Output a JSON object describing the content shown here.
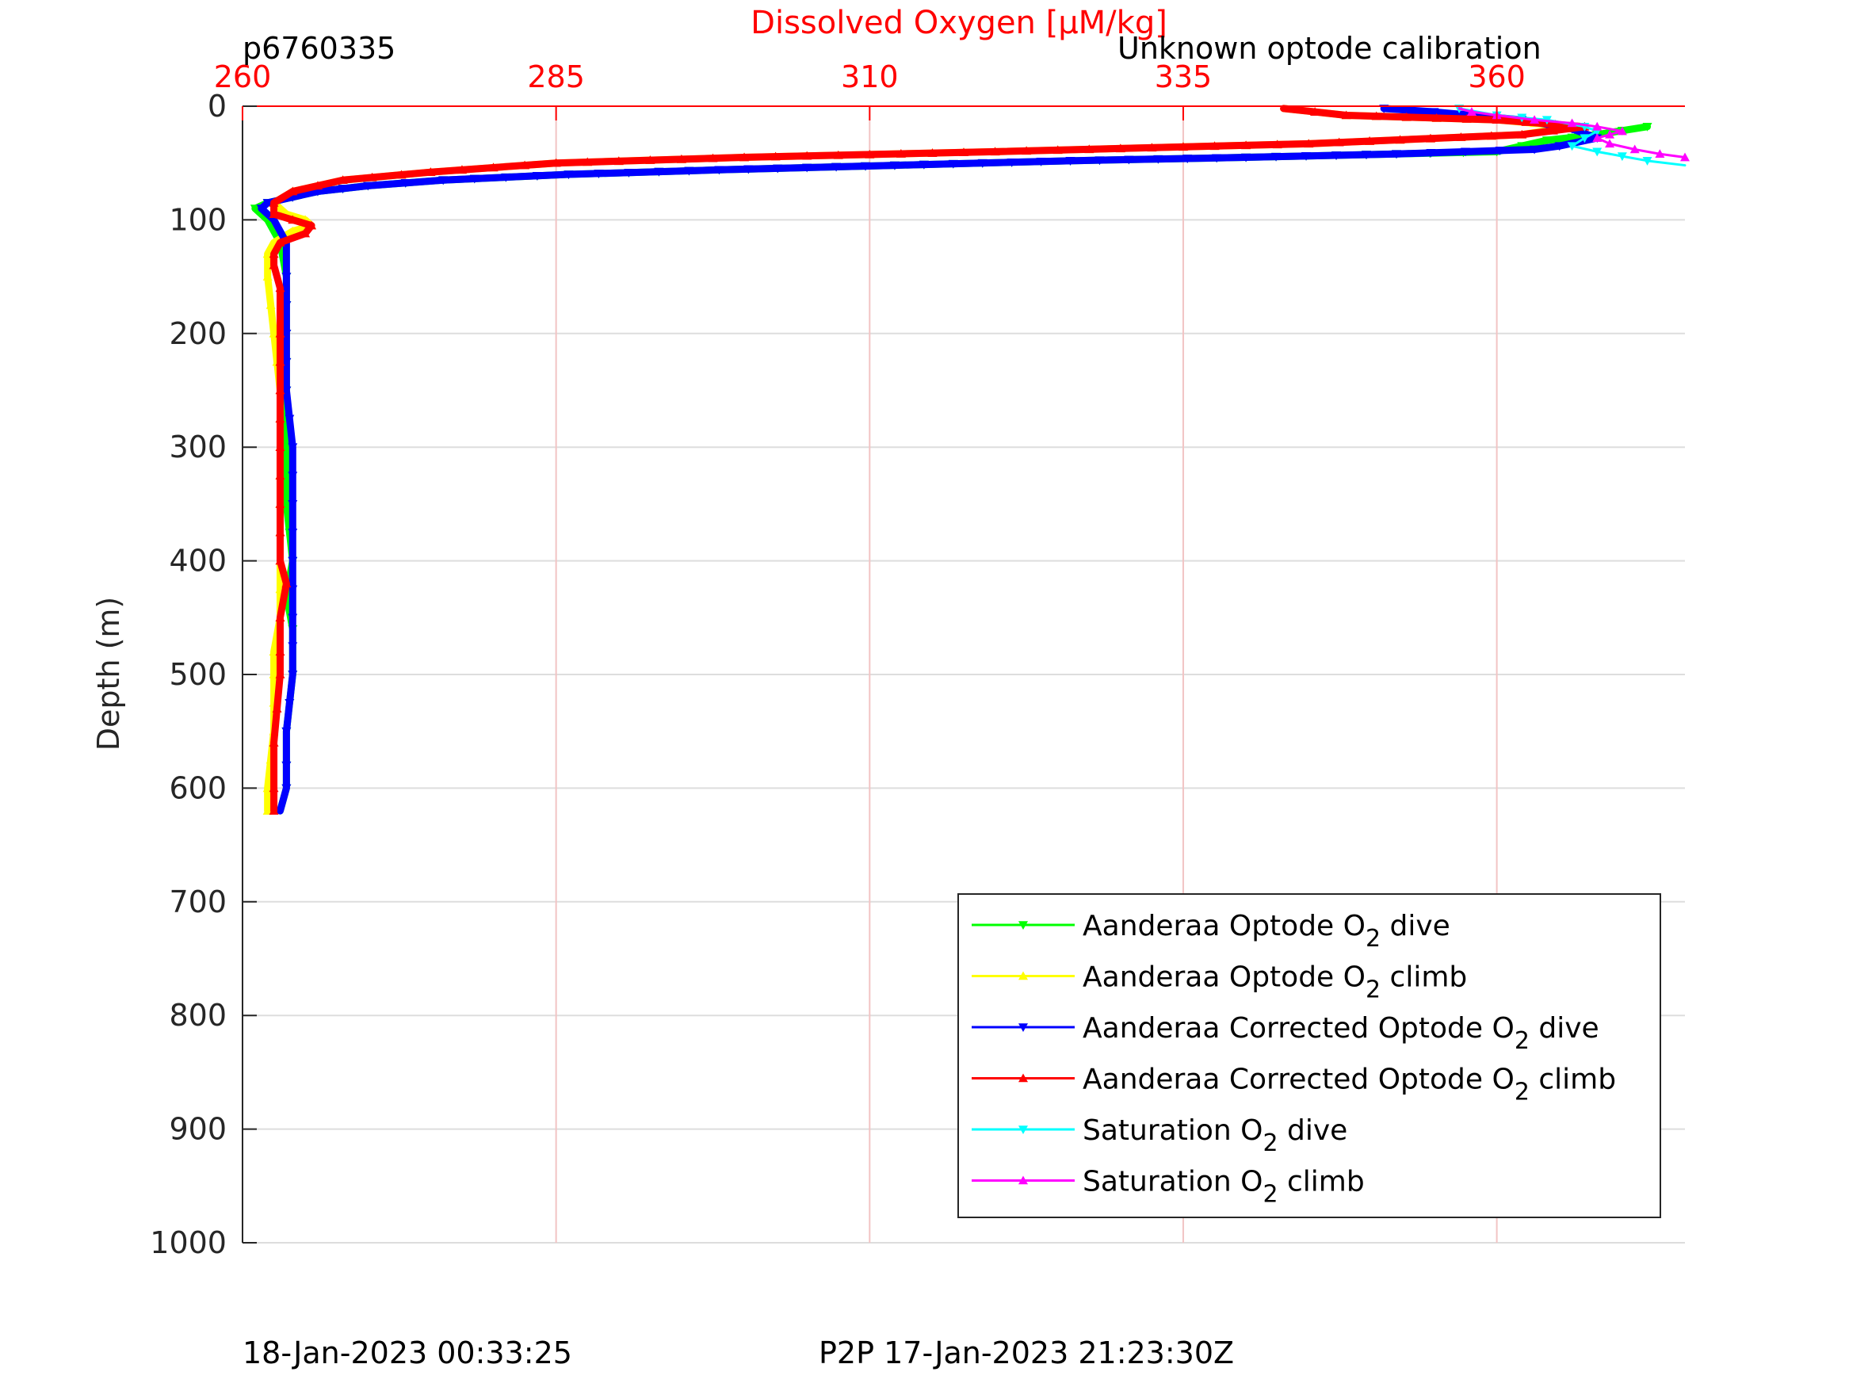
{
  "header": {
    "profile_id": "p6760335",
    "calibration_note": "Unknown optode calibration"
  },
  "footer": {
    "dive_time": "18-Jan-2023 00:33:25",
    "p2p_time": "P2P 17-Jan-2023 21:23:30Z"
  },
  "colors": {
    "top_axis": "#ff0000",
    "grid_x": "#f2c4c4",
    "grid_y": "#dddddd",
    "axis": "#262626"
  },
  "chart_data": {
    "type": "line",
    "title": "Dissolved Oxygen [μM/kg]",
    "xlabel": "Dissolved Oxygen [μM/kg]",
    "ylabel": "Depth (m)",
    "xlim": [
      260,
      375
    ],
    "ylim": [
      0,
      1000
    ],
    "y_reversed": true,
    "x_ticks": [
      260,
      285,
      310,
      335,
      360
    ],
    "y_ticks": [
      0,
      100,
      200,
      300,
      400,
      500,
      600,
      700,
      800,
      900,
      1000
    ],
    "x_axis_position": "top",
    "grid": true,
    "legend_position": "bottom-right",
    "series": [
      {
        "name": "Aanderaa Optode O2 dive",
        "legend_main": "Aanderaa Optode O",
        "legend_sub": "2",
        "legend_tail": " dive",
        "color": "#00ff00",
        "marker": "triangle-down",
        "x": [
          372,
          368,
          364,
          362,
          360,
          352,
          340,
          326,
          312,
          298,
          286,
          276,
          270,
          266,
          264,
          262,
          261,
          262,
          263,
          263.5,
          263.5,
          263.5,
          263.5,
          263.5,
          264,
          263.5,
          264,
          264,
          263.5,
          263.5,
          263.5,
          263
        ],
        "y": [
          18,
          25,
          30,
          35,
          40,
          42,
          45,
          48,
          52,
          56,
          60,
          65,
          70,
          75,
          80,
          85,
          90,
          100,
          120,
          150,
          200,
          250,
          300,
          350,
          400,
          430,
          460,
          500,
          550,
          580,
          600,
          620
        ]
      },
      {
        "name": "Aanderaa Optode O2 climb",
        "legend_main": "Aanderaa Optode O",
        "legend_sub": "2",
        "legend_tail": " climb",
        "color": "#ffff00",
        "marker": "triangle-up",
        "x": [
          262,
          262,
          262.5,
          262.5,
          262.5,
          263,
          263,
          263,
          263,
          263,
          262.5,
          262,
          262,
          262.5,
          264,
          265.5,
          265,
          263.5,
          262.5,
          264,
          268,
          275,
          285,
          300,
          320,
          345,
          362,
          366,
          360,
          348,
          343
        ],
        "y": [
          620,
          600,
          550,
          500,
          480,
          450,
          400,
          350,
          300,
          250,
          200,
          150,
          130,
          120,
          110,
          105,
          100,
          95,
          85,
          75,
          65,
          58,
          50,
          45,
          40,
          33,
          25,
          18,
          12,
          8,
          2
        ]
      },
      {
        "name": "Aanderaa Corrected Optode O2 dive",
        "legend_main": "Aanderaa Corrected Optode O",
        "legend_sub": "2",
        "legend_tail": " dive",
        "color": "#0000ff",
        "marker": "triangle-down",
        "x": [
          351,
          355,
          362,
          366,
          368,
          365,
          363,
          352,
          340,
          326,
          312,
          298,
          286,
          276,
          270,
          266,
          264,
          262,
          261.5,
          262.5,
          263.5,
          263.5,
          263.5,
          263.5,
          264,
          264,
          264,
          264,
          264,
          263.5,
          263.5,
          263.5,
          263
        ],
        "y": [
          2,
          5,
          12,
          20,
          28,
          35,
          38,
          42,
          45,
          48,
          52,
          56,
          60,
          65,
          70,
          75,
          80,
          85,
          90,
          100,
          120,
          150,
          200,
          250,
          300,
          350,
          400,
          450,
          500,
          550,
          580,
          600,
          620
        ]
      },
      {
        "name": "Aanderaa Corrected Optode O2 climb",
        "legend_main": "Aanderaa Corrected Optode O",
        "legend_sub": "2",
        "legend_tail": " climb",
        "color": "#ff0000",
        "marker": "triangle-up",
        "x": [
          262.5,
          262.5,
          262.5,
          263,
          263,
          263,
          263.5,
          263,
          263,
          263,
          263,
          263,
          263,
          262.5,
          262.5,
          263,
          265,
          265.5,
          264,
          262.5,
          262.5,
          264,
          268,
          275,
          285,
          300,
          320,
          345,
          362,
          367,
          360,
          348,
          343
        ],
        "y": [
          620,
          600,
          560,
          500,
          480,
          450,
          420,
          400,
          350,
          300,
          250,
          200,
          160,
          140,
          130,
          120,
          112,
          105,
          100,
          95,
          85,
          75,
          65,
          58,
          50,
          45,
          40,
          33,
          25,
          18,
          12,
          8,
          2
        ]
      },
      {
        "name": "Saturation O2 dive",
        "legend_main": "Saturation O",
        "legend_sub": "2",
        "legend_tail": " dive",
        "color": "#00ffff",
        "marker": "triangle-down",
        "x": [
          357,
          360,
          364,
          367,
          368,
          367,
          366,
          368,
          370,
          372,
          375
        ],
        "y": [
          2,
          8,
          12,
          18,
          22,
          28,
          35,
          40,
          44,
          48,
          52
        ]
      },
      {
        "name": "Saturation O2 climb",
        "legend_main": "Saturation O",
        "legend_sub": "2",
        "legend_tail": " climb",
        "color": "#ff00ff",
        "marker": "triangle-up",
        "x": [
          375,
          373,
          371,
          369,
          368,
          369,
          370,
          368,
          366,
          363,
          360,
          358,
          357
        ],
        "y": [
          45,
          42,
          38,
          33,
          28,
          25,
          22,
          18,
          15,
          12,
          8,
          5,
          2
        ]
      }
    ]
  }
}
